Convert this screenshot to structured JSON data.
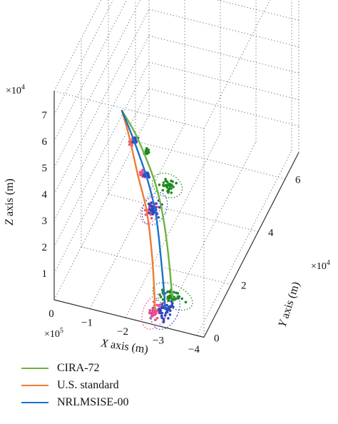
{
  "chart_data": {
    "type": "scatter",
    "view": "3d",
    "colors": {
      "cira": "#6cb33e",
      "us": "#f07a30",
      "nrl": "#1a72c8",
      "cira_scatter": "#1e8a1e",
      "us_scatter": "#ea4f8e",
      "nrl_scatter": "#2f47c4"
    },
    "axes": {
      "x": {
        "label_var": "X",
        "label_rest": " axis (m)",
        "exponent": "×10",
        "exponent_power": "5",
        "ticks": [
          "0",
          "−1",
          "−2",
          "−3",
          "−4"
        ],
        "range": [
          0,
          -4.2
        ]
      },
      "y": {
        "label_var": "Y",
        "label_rest": " axis (m)",
        "exponent": "×10",
        "exponent_power": "4",
        "ticks": [
          "0",
          "2",
          "4",
          "6"
        ],
        "range": [
          0,
          7
        ]
      },
      "z": {
        "label_var": "Z",
        "label_rest": " axis (m)",
        "exponent": "×10",
        "exponent_power": "4",
        "ticks": [
          "1",
          "2",
          "3",
          "4",
          "5",
          "6",
          "7"
        ],
        "range": [
          0,
          7.9
        ]
      },
      "grid": true
    },
    "legend": {
      "position": "bottom-left",
      "entries": [
        {
          "key": "cira",
          "name": "CIRA-72"
        },
        {
          "key": "us",
          "name": "U.S. standard"
        },
        {
          "key": "nrl",
          "name": "NRLMSISE-00"
        }
      ]
    },
    "series": [
      {
        "key": "cira",
        "name": "CIRA-72",
        "trajectory": [
          [
            -1.9,
            0,
            7.8
          ],
          [
            -2.3,
            0,
            7.0
          ],
          [
            -2.8,
            0,
            5.5
          ],
          [
            -3.05,
            0,
            4.2
          ],
          [
            -3.2,
            0,
            2.8
          ],
          [
            -3.3,
            0,
            1.4
          ],
          [
            -3.33,
            0,
            1.2
          ]
        ],
        "clusters": [
          {
            "center": [
              -2.6,
              0,
              6.5
            ],
            "ellipse": false,
            "count": 26
          },
          {
            "center": [
              -3.17,
              0,
              5.4
            ],
            "ellipse": true,
            "count": 34
          },
          {
            "center": [
              -3.32,
              0,
              1.25
            ],
            "ellipse": true,
            "count": 40
          }
        ]
      },
      {
        "key": "us",
        "name": "U.S. standard",
        "trajectory": [
          [
            -1.9,
            0,
            7.8
          ],
          [
            -2.1,
            0,
            6.9
          ],
          [
            -2.35,
            0,
            5.5
          ],
          [
            -2.6,
            0,
            4.2
          ],
          [
            -2.75,
            0,
            2.5
          ],
          [
            -2.82,
            0,
            0.9
          ],
          [
            -2.82,
            0,
            0.6
          ]
        ],
        "clusters": [
          {
            "center": [
              -2.15,
              0,
              6.7
            ],
            "ellipse": false,
            "count": 14
          },
          {
            "center": [
              -2.47,
              0,
              5.6
            ],
            "ellipse": false,
            "count": 18
          },
          {
            "center": [
              -2.7,
              0,
              4.3
            ],
            "ellipse": true,
            "count": 28
          },
          {
            "center": [
              -2.82,
              0,
              0.5
            ],
            "ellipse": true,
            "count": 40
          }
        ]
      },
      {
        "key": "nrl",
        "name": "NRLMSISE-00",
        "trajectory": [
          [
            -1.9,
            0,
            7.8
          ],
          [
            -2.2,
            0,
            6.9
          ],
          [
            -2.6,
            0,
            5.5
          ],
          [
            -2.85,
            0,
            4.2
          ],
          [
            -3.0,
            0,
            2.5
          ],
          [
            -3.1,
            0,
            1.0
          ],
          [
            -3.1,
            0,
            0.7
          ]
        ],
        "clusters": [
          {
            "center": [
              -2.27,
              0,
              6.8
            ],
            "ellipse": false,
            "count": 16
          },
          {
            "center": [
              -2.58,
              0,
              5.6
            ],
            "ellipse": false,
            "count": 22
          },
          {
            "center": [
              -2.82,
              0,
              4.4
            ],
            "ellipse": true,
            "count": 30
          },
          {
            "center": [
              -3.12,
              0,
              0.65
            ],
            "ellipse": true,
            "count": 44
          }
        ]
      }
    ]
  }
}
